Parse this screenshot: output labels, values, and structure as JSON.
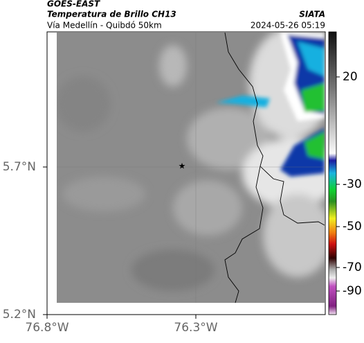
{
  "header": {
    "title": "GOES-EAST",
    "subtitle": "Temperatura de Brillo CH13",
    "region": "Vía Medellín - Quibdó 50km",
    "source": "SIATA",
    "datetime": "2024-05-26 05:19"
  },
  "map": {
    "lat_labels": [
      "5.7°N",
      "5.2°N"
    ],
    "lon_labels": [
      "76.8°W",
      "76.3°W"
    ]
  },
  "colorbar": {
    "labels": [
      "20",
      "-30",
      "-50",
      "-70",
      "-90"
    ]
  }
}
